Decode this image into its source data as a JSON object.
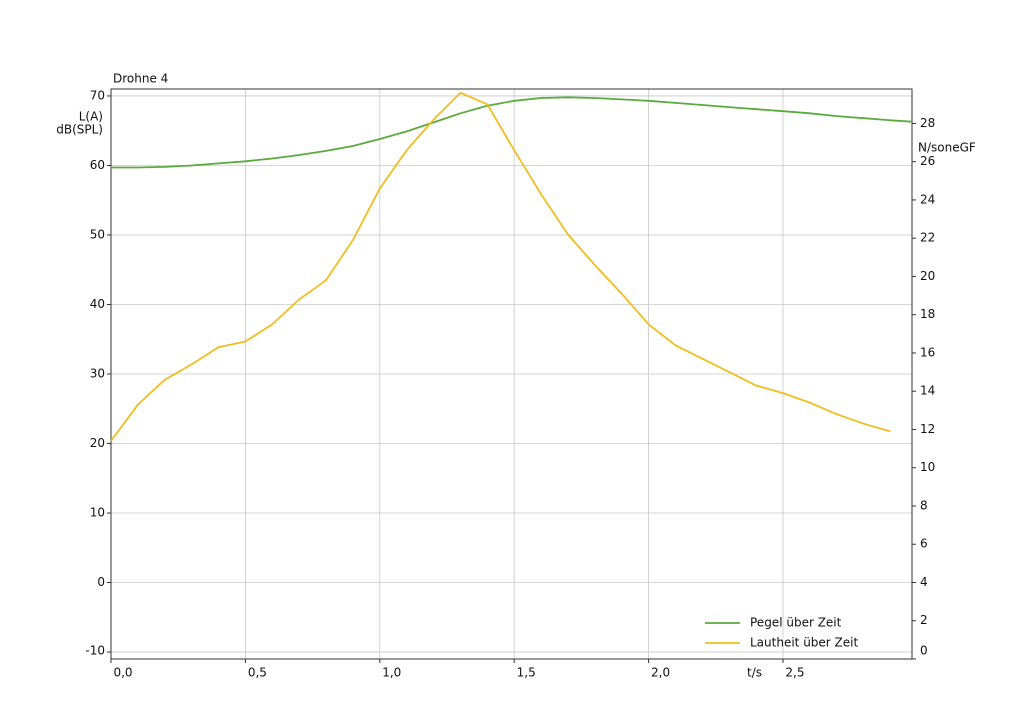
{
  "chart_data": {
    "type": "line",
    "title": "Drohne 4",
    "ylabel": [
      "L(A)",
      "dB(SPL)"
    ],
    "y2label": "N/soneGF",
    "xlabel": "t/s",
    "x": [
      0,
      0.1,
      0.2,
      0.3,
      0.4,
      0.5,
      0.6,
      0.7,
      0.8,
      0.9,
      1.0,
      1.1,
      1.2,
      1.3,
      1.4,
      1.5,
      1.6,
      1.7,
      1.8,
      1.9,
      2.0,
      2.1,
      2.2,
      2.3,
      2.4,
      2.5,
      2.6,
      2.7,
      2.8,
      2.9,
      2.98
    ],
    "series": [
      {
        "name": "Pegel über Zeit",
        "color": "#5aaa3c",
        "axis": "y",
        "values": [
          59.7,
          59.7,
          59.8,
          60.0,
          60.3,
          60.6,
          61.0,
          61.5,
          62.1,
          62.8,
          63.8,
          64.9,
          66.2,
          67.5,
          68.6,
          69.3,
          69.7,
          69.8,
          69.7,
          69.5,
          69.3,
          69.0,
          68.7,
          68.4,
          68.1,
          67.8,
          67.5,
          67.1,
          66.8,
          66.5,
          66.3
        ]
      },
      {
        "name": "Lautheit über Zeit",
        "color": "#f2bd1d",
        "axis": "y2",
        "values": [
          11.4,
          13.3,
          14.6,
          15.4,
          16.3,
          16.6,
          17.5,
          18.8,
          19.8,
          21.9,
          24.6,
          26.6,
          28.2,
          29.6,
          29.0,
          26.6,
          24.3,
          22.2,
          20.6,
          19.1,
          17.5,
          16.4,
          15.7,
          15.0,
          14.3,
          13.9,
          13.4,
          12.8,
          12.3,
          11.9,
          null
        ]
      }
    ],
    "xlim": [
      0,
      2.98
    ],
    "xticks": [
      {
        "value": 0,
        "label": "0,0"
      },
      {
        "value": 0.5,
        "label": "0,5"
      },
      {
        "value": 1.0,
        "label": "1,0"
      },
      {
        "value": 1.5,
        "label": "1,5"
      },
      {
        "value": 2.0,
        "label": "2,0"
      },
      {
        "value": 2.5,
        "label": "2,5"
      }
    ],
    "ylim": [
      -11,
      71
    ],
    "yticks": [
      -10,
      0,
      10,
      20,
      30,
      40,
      50,
      60,
      70
    ],
    "y2lim": [
      0,
      29.8
    ],
    "y2ticks": [
      0,
      2,
      4,
      6,
      8,
      10,
      12,
      14,
      16,
      18,
      20,
      22,
      24,
      26,
      28
    ],
    "grid": true,
    "legend": "lower right"
  }
}
